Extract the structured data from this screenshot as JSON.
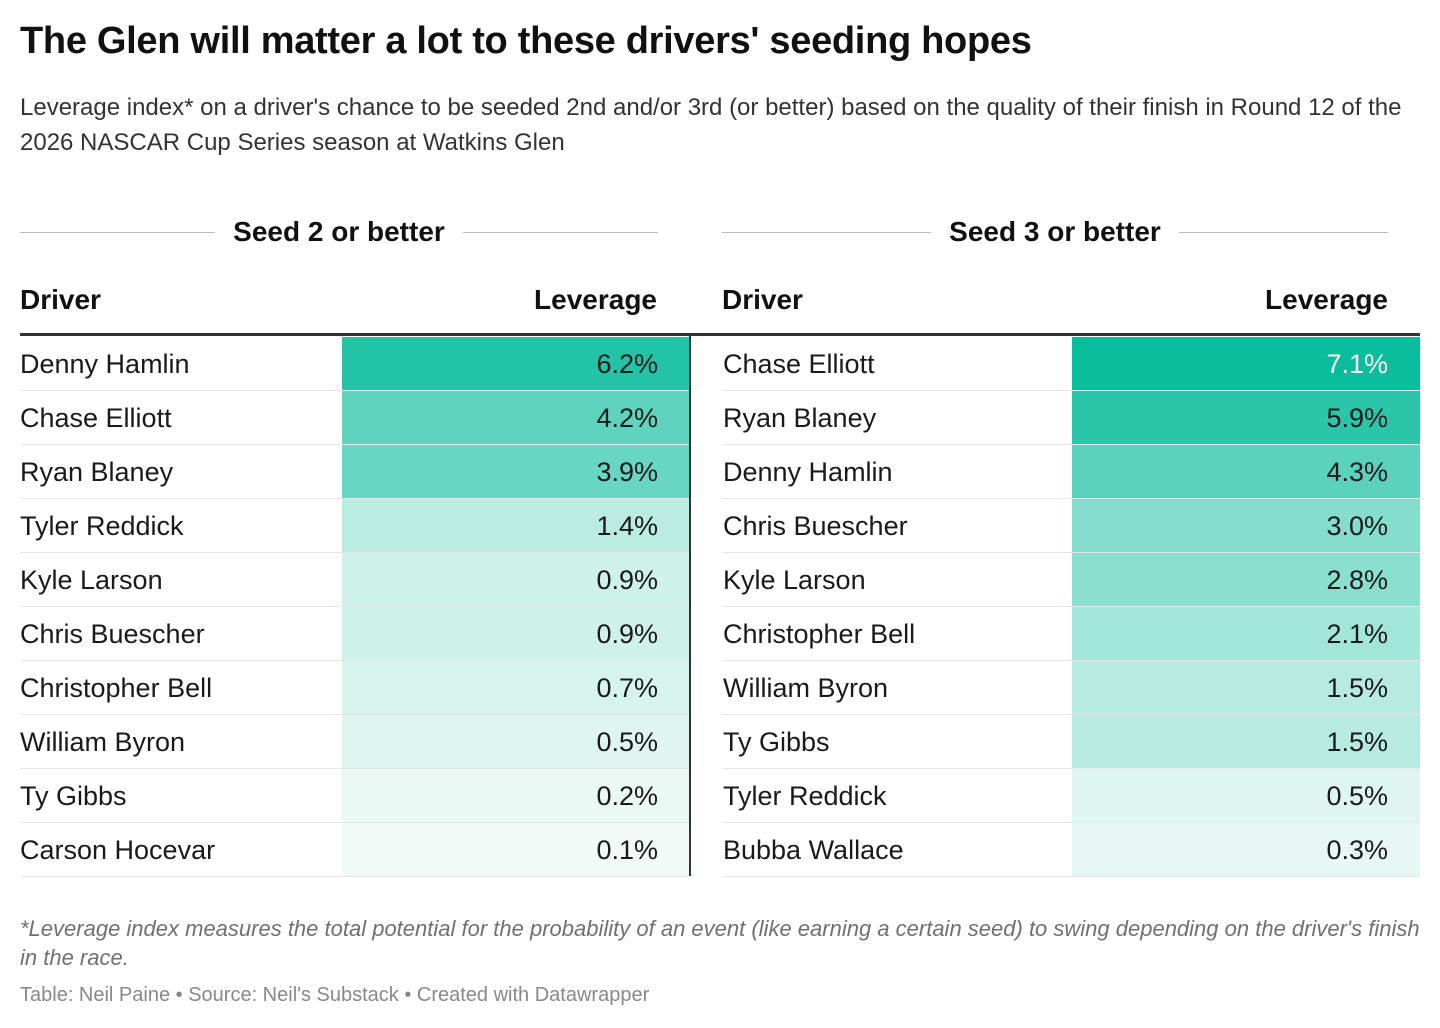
{
  "title": "The Glen will matter a lot to these drivers' seeding hopes",
  "subtitle": "Leverage index* on a driver's chance to be seeded 2nd and/or 3rd (or better) based on the quality of their finish in Round 12 of the 2026 NASCAR Cup Series season at Watkins Glen",
  "chart_data": {
    "type": "table",
    "columns": [
      "Driver",
      "Leverage"
    ],
    "groups": [
      {
        "label": "Seed 2 or better",
        "rows": [
          {
            "driver": "Denny Hamlin",
            "leverage": 6.2,
            "display": "6.2%"
          },
          {
            "driver": "Chase Elliott",
            "leverage": 4.2,
            "display": "4.2%"
          },
          {
            "driver": "Ryan Blaney",
            "leverage": 3.9,
            "display": "3.9%"
          },
          {
            "driver": "Tyler Reddick",
            "leverage": 1.4,
            "display": "1.4%"
          },
          {
            "driver": "Kyle Larson",
            "leverage": 0.9,
            "display": "0.9%"
          },
          {
            "driver": "Chris Buescher",
            "leverage": 0.9,
            "display": "0.9%"
          },
          {
            "driver": "Christopher Bell",
            "leverage": 0.7,
            "display": "0.7%"
          },
          {
            "driver": "William Byron",
            "leverage": 0.5,
            "display": "0.5%"
          },
          {
            "driver": "Ty Gibbs",
            "leverage": 0.2,
            "display": "0.2%"
          },
          {
            "driver": "Carson Hocevar",
            "leverage": 0.1,
            "display": "0.1%"
          }
        ]
      },
      {
        "label": "Seed 3 or better",
        "rows": [
          {
            "driver": "Chase Elliott",
            "leverage": 7.1,
            "display": "7.1%"
          },
          {
            "driver": "Ryan Blaney",
            "leverage": 5.9,
            "display": "5.9%"
          },
          {
            "driver": "Denny Hamlin",
            "leverage": 4.3,
            "display": "4.3%"
          },
          {
            "driver": "Chris Buescher",
            "leverage": 3.0,
            "display": "3.0%"
          },
          {
            "driver": "Kyle Larson",
            "leverage": 2.8,
            "display": "2.8%"
          },
          {
            "driver": "Christopher Bell",
            "leverage": 2.1,
            "display": "2.1%"
          },
          {
            "driver": "William Byron",
            "leverage": 1.5,
            "display": "1.5%"
          },
          {
            "driver": "Ty Gibbs",
            "leverage": 1.5,
            "display": "1.5%"
          },
          {
            "driver": "Tyler Reddick",
            "leverage": 0.5,
            "display": "0.5%"
          },
          {
            "driver": "Bubba Wallace",
            "leverage": 0.3,
            "display": "0.3%"
          }
        ]
      }
    ],
    "color_scale": {
      "low": "#f7fcfa",
      "high": "#08bc9c",
      "max_value": 7.1
    }
  },
  "footnote": "*Leverage index measures the total potential for the probability of an event (like earning a certain seed) to swing depending on the driver's finish in the race.",
  "credit": "Table: Neil Paine • Source: Neil's Substack • Created with Datawrapper"
}
